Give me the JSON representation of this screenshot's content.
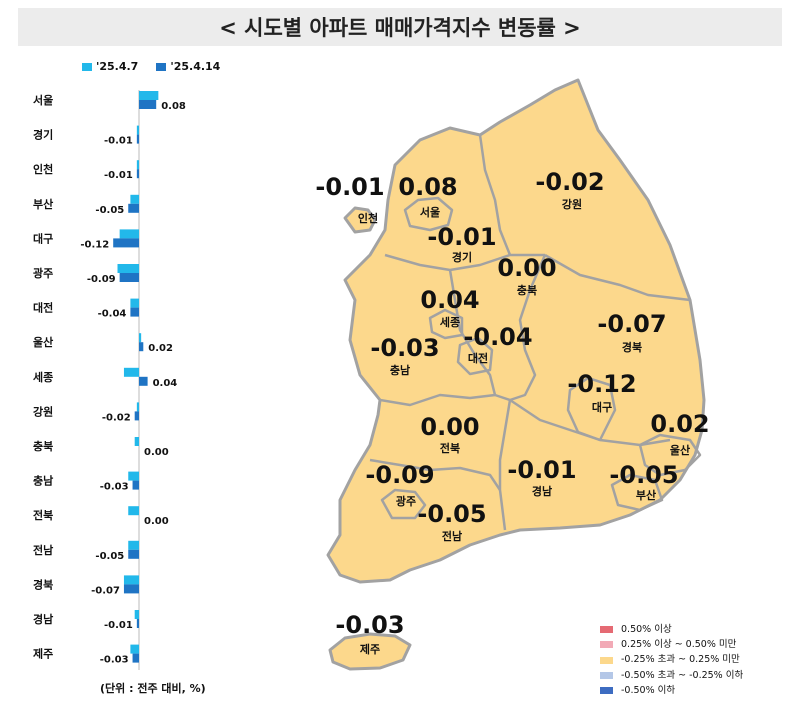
{
  "title": "< 시도별 아파트 매매가격지수 변동률 >",
  "colors": {
    "series1": "#22b8ea",
    "series2": "#1f74c4",
    "map_fill": "#fcd88c",
    "map_stroke": "#a2a2a2"
  },
  "chart_data": {
    "type": "bar",
    "orientation": "horizontal",
    "categories": [
      "서울",
      "경기",
      "인천",
      "부산",
      "대구",
      "광주",
      "대전",
      "울산",
      "세종",
      "강원",
      "충북",
      "충남",
      "전북",
      "전남",
      "경북",
      "경남",
      "제주"
    ],
    "series": [
      {
        "name": "'25.4.7",
        "values": [
          0.09,
          -0.01,
          -0.01,
          -0.04,
          -0.09,
          -0.1,
          -0.04,
          0.01,
          -0.07,
          -0.01,
          -0.02,
          -0.05,
          -0.05,
          -0.05,
          -0.07,
          -0.02,
          -0.04
        ]
      },
      {
        "name": "'25.4.14",
        "values": [
          0.08,
          -0.01,
          -0.01,
          -0.05,
          -0.12,
          -0.09,
          -0.04,
          0.02,
          0.04,
          -0.02,
          0.0,
          -0.03,
          0.0,
          -0.05,
          -0.07,
          -0.01,
          -0.03
        ]
      }
    ],
    "value_labels": [
      "0.08",
      "-0.01",
      "-0.01",
      "-0.05",
      "-0.12",
      "-0.09",
      "-0.04",
      "0.02",
      "0.04",
      "-0.02",
      "0.00",
      "-0.03",
      "0.00",
      "-0.05",
      "-0.07",
      "-0.01",
      "-0.03"
    ],
    "unit_note": "(단위 : 전주 대비, %)"
  },
  "map": {
    "regions": [
      {
        "name": "인천",
        "value": "-0.01"
      },
      {
        "name": "서울",
        "value": "0.08"
      },
      {
        "name": "강원",
        "value": "-0.02"
      },
      {
        "name": "경기",
        "value": "-0.01"
      },
      {
        "name": "충북",
        "value": "0.00"
      },
      {
        "name": "세종",
        "value": "0.04"
      },
      {
        "name": "경북",
        "value": "-0.07"
      },
      {
        "name": "충남",
        "value": "-0.03"
      },
      {
        "name": "대전",
        "value": "-0.04"
      },
      {
        "name": "대구",
        "value": "-0.12"
      },
      {
        "name": "전북",
        "value": "0.00"
      },
      {
        "name": "울산",
        "value": "0.02"
      },
      {
        "name": "광주",
        "value": "-0.09"
      },
      {
        "name": "경남",
        "value": "-0.01"
      },
      {
        "name": "부산",
        "value": "-0.05"
      },
      {
        "name": "전남",
        "value": "-0.05"
      },
      {
        "name": "제주",
        "value": "-0.03"
      }
    ],
    "legend": [
      {
        "label": "0.50% 이상",
        "color": "#e56a73"
      },
      {
        "label": "0.25% 이상 ~ 0.50% 미만",
        "color": "#f2aab6"
      },
      {
        "label": "-0.25% 초과 ~ 0.25% 미만",
        "color": "#fcd88c"
      },
      {
        "label": "-0.50% 초과 ~ -0.25% 이하",
        "color": "#b4c7e7"
      },
      {
        "label": "-0.50% 이하",
        "color": "#3d6cc1"
      }
    ]
  }
}
